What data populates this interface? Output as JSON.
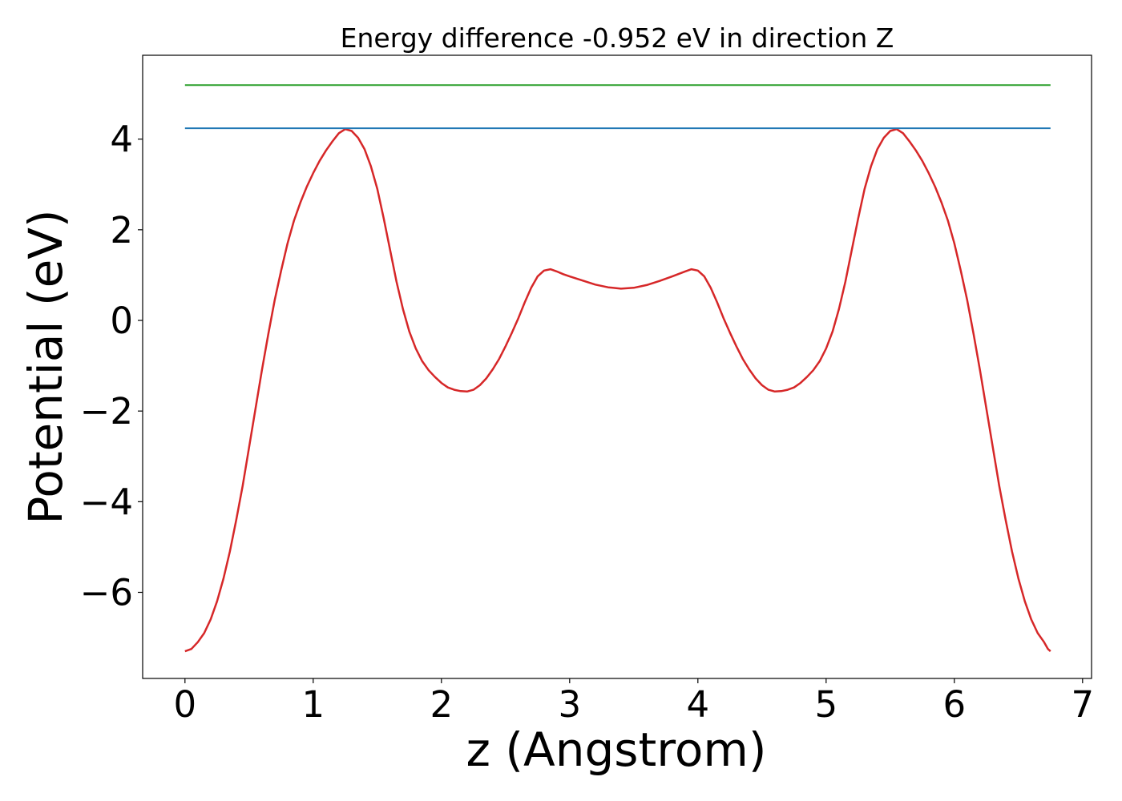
{
  "chart_data": {
    "type": "line",
    "title": "Energy difference -0.952 eV in direction Z",
    "xlabel": "z (Angstrom)",
    "ylabel": "Potential (eV)",
    "xlim": [
      -0.33,
      7.07
    ],
    "ylim": [
      -7.9,
      5.85
    ],
    "xticks": [
      0,
      1,
      2,
      3,
      4,
      5,
      6,
      7
    ],
    "xtick_labels": [
      "0",
      "1",
      "2",
      "3",
      "4",
      "5",
      "6",
      "7"
    ],
    "yticks": [
      -6,
      -4,
      -2,
      0,
      2,
      4
    ],
    "ytick_labels": [
      "−6",
      "−4",
      "−2",
      "0",
      "2",
      "4"
    ],
    "grid": false,
    "legend": "none",
    "series": [
      {
        "color": "#d62728",
        "points": [
          [
            0.0,
            -7.3
          ],
          [
            0.05,
            -7.25
          ],
          [
            0.1,
            -7.1
          ],
          [
            0.15,
            -6.9
          ],
          [
            0.2,
            -6.6
          ],
          [
            0.25,
            -6.2
          ],
          [
            0.3,
            -5.7
          ],
          [
            0.35,
            -5.1
          ],
          [
            0.4,
            -4.4
          ],
          [
            0.45,
            -3.65
          ],
          [
            0.5,
            -2.8
          ],
          [
            0.55,
            -1.95
          ],
          [
            0.6,
            -1.1
          ],
          [
            0.65,
            -0.3
          ],
          [
            0.7,
            0.45
          ],
          [
            0.75,
            1.1
          ],
          [
            0.8,
            1.7
          ],
          [
            0.85,
            2.2
          ],
          [
            0.9,
            2.6
          ],
          [
            0.95,
            2.95
          ],
          [
            1.0,
            3.25
          ],
          [
            1.05,
            3.52
          ],
          [
            1.1,
            3.75
          ],
          [
            1.15,
            3.95
          ],
          [
            1.2,
            4.13
          ],
          [
            1.25,
            4.22
          ],
          [
            1.3,
            4.18
          ],
          [
            1.35,
            4.03
          ],
          [
            1.4,
            3.78
          ],
          [
            1.45,
            3.4
          ],
          [
            1.5,
            2.9
          ],
          [
            1.55,
            2.25
          ],
          [
            1.6,
            1.55
          ],
          [
            1.65,
            0.85
          ],
          [
            1.7,
            0.25
          ],
          [
            1.75,
            -0.25
          ],
          [
            1.8,
            -0.62
          ],
          [
            1.85,
            -0.9
          ],
          [
            1.9,
            -1.1
          ],
          [
            1.95,
            -1.25
          ],
          [
            2.0,
            -1.38
          ],
          [
            2.05,
            -1.48
          ],
          [
            2.1,
            -1.53
          ],
          [
            2.15,
            -1.56
          ],
          [
            2.2,
            -1.57
          ],
          [
            2.25,
            -1.53
          ],
          [
            2.3,
            -1.43
          ],
          [
            2.35,
            -1.28
          ],
          [
            2.4,
            -1.08
          ],
          [
            2.45,
            -0.85
          ],
          [
            2.5,
            -0.57
          ],
          [
            2.55,
            -0.27
          ],
          [
            2.6,
            0.05
          ],
          [
            2.65,
            0.4
          ],
          [
            2.7,
            0.72
          ],
          [
            2.75,
            0.97
          ],
          [
            2.8,
            1.1
          ],
          [
            2.85,
            1.13
          ],
          [
            2.9,
            1.08
          ],
          [
            2.95,
            1.02
          ],
          [
            3.0,
            0.97
          ],
          [
            3.1,
            0.88
          ],
          [
            3.2,
            0.79
          ],
          [
            3.3,
            0.73
          ],
          [
            3.4,
            0.7
          ],
          [
            3.5,
            0.72
          ],
          [
            3.6,
            0.78
          ],
          [
            3.7,
            0.87
          ],
          [
            3.8,
            0.97
          ],
          [
            3.9,
            1.08
          ],
          [
            3.95,
            1.13
          ],
          [
            4.0,
            1.1
          ],
          [
            4.05,
            0.97
          ],
          [
            4.1,
            0.72
          ],
          [
            4.15,
            0.4
          ],
          [
            4.2,
            0.05
          ],
          [
            4.25,
            -0.27
          ],
          [
            4.3,
            -0.57
          ],
          [
            4.35,
            -0.85
          ],
          [
            4.4,
            -1.08
          ],
          [
            4.45,
            -1.28
          ],
          [
            4.5,
            -1.43
          ],
          [
            4.55,
            -1.53
          ],
          [
            4.6,
            -1.57
          ],
          [
            4.65,
            -1.56
          ],
          [
            4.7,
            -1.53
          ],
          [
            4.75,
            -1.48
          ],
          [
            4.8,
            -1.38
          ],
          [
            4.85,
            -1.25
          ],
          [
            4.9,
            -1.1
          ],
          [
            4.95,
            -0.9
          ],
          [
            5.0,
            -0.62
          ],
          [
            5.05,
            -0.25
          ],
          [
            5.1,
            0.25
          ],
          [
            5.15,
            0.85
          ],
          [
            5.2,
            1.55
          ],
          [
            5.25,
            2.25
          ],
          [
            5.3,
            2.9
          ],
          [
            5.35,
            3.4
          ],
          [
            5.4,
            3.78
          ],
          [
            5.45,
            4.03
          ],
          [
            5.5,
            4.18
          ],
          [
            5.55,
            4.22
          ],
          [
            5.6,
            4.13
          ],
          [
            5.65,
            3.95
          ],
          [
            5.7,
            3.75
          ],
          [
            5.75,
            3.52
          ],
          [
            5.8,
            3.25
          ],
          [
            5.85,
            2.95
          ],
          [
            5.9,
            2.6
          ],
          [
            5.95,
            2.2
          ],
          [
            6.0,
            1.7
          ],
          [
            6.05,
            1.1
          ],
          [
            6.1,
            0.45
          ],
          [
            6.15,
            -0.3
          ],
          [
            6.2,
            -1.1
          ],
          [
            6.25,
            -1.95
          ],
          [
            6.3,
            -2.8
          ],
          [
            6.35,
            -3.65
          ],
          [
            6.4,
            -4.4
          ],
          [
            6.45,
            -5.1
          ],
          [
            6.5,
            -5.7
          ],
          [
            6.55,
            -6.2
          ],
          [
            6.6,
            -6.6
          ],
          [
            6.65,
            -6.9
          ],
          [
            6.7,
            -7.1
          ],
          [
            6.73,
            -7.25
          ],
          [
            6.75,
            -7.3
          ]
        ]
      },
      {
        "color": "#1f77b4",
        "points": [
          [
            0.0,
            4.24
          ],
          [
            6.75,
            4.24
          ]
        ]
      },
      {
        "color": "#2ca02c",
        "points": [
          [
            0.0,
            5.19
          ],
          [
            6.75,
            5.19
          ]
        ]
      }
    ]
  }
}
